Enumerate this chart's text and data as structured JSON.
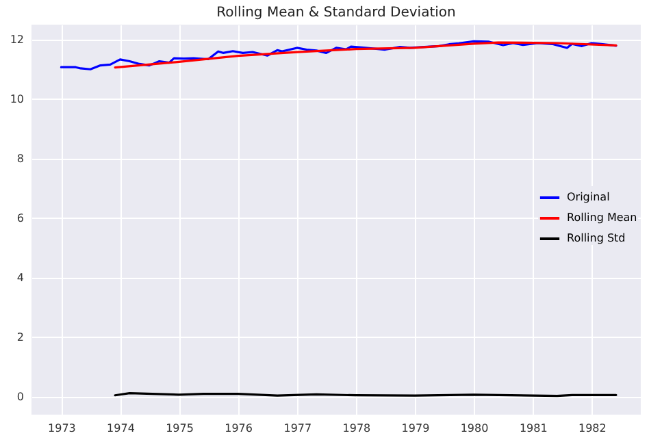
{
  "chart_data": {
    "type": "line",
    "title": "Rolling Mean & Standard Deviation",
    "xlim": [
      "1972-07",
      "1982-11"
    ],
    "xticks": [
      {
        "value": "1973",
        "label": "1973"
      },
      {
        "value": "1974",
        "label": "1974"
      },
      {
        "value": "1975",
        "label": "1975"
      },
      {
        "value": "1976",
        "label": "1976"
      },
      {
        "value": "1977",
        "label": "1977"
      },
      {
        "value": "1978",
        "label": "1978"
      },
      {
        "value": "1979",
        "label": "1979"
      },
      {
        "value": "1980",
        "label": "1980"
      },
      {
        "value": "1981",
        "label": "1981"
      },
      {
        "value": "1982",
        "label": "1982"
      }
    ],
    "ylim": [
      -0.6,
      12.5
    ],
    "yticks": [
      0,
      2,
      4,
      6,
      8,
      10,
      12
    ],
    "grid": true,
    "legend": "right",
    "line_style": "solid",
    "series": [
      {
        "name": "Original",
        "color": "#0000ff",
        "x": [
          "1973-01",
          "1973-04",
          "1973-05",
          "1973-07",
          "1973-09",
          "1973-11",
          "1974-01",
          "1974-03",
          "1974-05",
          "1974-07",
          "1974-09",
          "1974-11",
          "1974-12",
          "1975-02",
          "1975-04",
          "1975-07",
          "1975-09",
          "1975-10",
          "1975-12",
          "1976-02",
          "1976-04",
          "1976-07",
          "1976-09",
          "1976-10",
          "1977-01",
          "1977-03",
          "1977-05",
          "1977-07",
          "1977-09",
          "1977-11",
          "1977-12",
          "1978-03",
          "1978-07",
          "1978-10",
          "1978-12",
          "1979-03",
          "1979-06",
          "1979-08",
          "1979-10",
          "1980-01",
          "1980-04",
          "1980-07",
          "1980-09",
          "1980-11",
          "1981-02",
          "1981-05",
          "1981-08",
          "1981-09",
          "1981-11",
          "1982-01",
          "1982-03",
          "1982-06"
        ],
        "values": [
          11.07,
          11.07,
          11.03,
          11.0,
          11.13,
          11.16,
          11.33,
          11.27,
          11.18,
          11.13,
          11.27,
          11.22,
          11.37,
          11.36,
          11.37,
          11.34,
          11.6,
          11.55,
          11.61,
          11.55,
          11.58,
          11.46,
          11.64,
          11.6,
          11.72,
          11.66,
          11.63,
          11.55,
          11.72,
          11.67,
          11.76,
          11.72,
          11.66,
          11.75,
          11.72,
          11.75,
          11.78,
          11.84,
          11.87,
          11.94,
          11.93,
          11.81,
          11.88,
          11.82,
          11.88,
          11.85,
          11.72,
          11.85,
          11.78,
          11.88,
          11.85,
          11.79
        ]
      },
      {
        "name": "Rolling Mean",
        "color": "#ff0000",
        "x": [
          "1973-12",
          "1975-01",
          "1976-01",
          "1977-01",
          "1978-01",
          "1979-01",
          "1980-01",
          "1980-06",
          "1981-06",
          "1982-06"
        ],
        "values": [
          11.06,
          11.25,
          11.45,
          11.58,
          11.68,
          11.72,
          11.86,
          11.9,
          11.88,
          11.8
        ]
      },
      {
        "name": "Rolling Std",
        "color": "#000000",
        "x": [
          "1973-12",
          "1974-03",
          "1975-01",
          "1975-06",
          "1976-01",
          "1976-09",
          "1977-05",
          "1978-01",
          "1979-01",
          "1980-01",
          "1981-06",
          "1981-09",
          "1982-06"
        ],
        "values": [
          0.05,
          0.12,
          0.07,
          0.1,
          0.1,
          0.04,
          0.08,
          0.05,
          0.04,
          0.07,
          0.03,
          0.06,
          0.06
        ]
      }
    ]
  }
}
